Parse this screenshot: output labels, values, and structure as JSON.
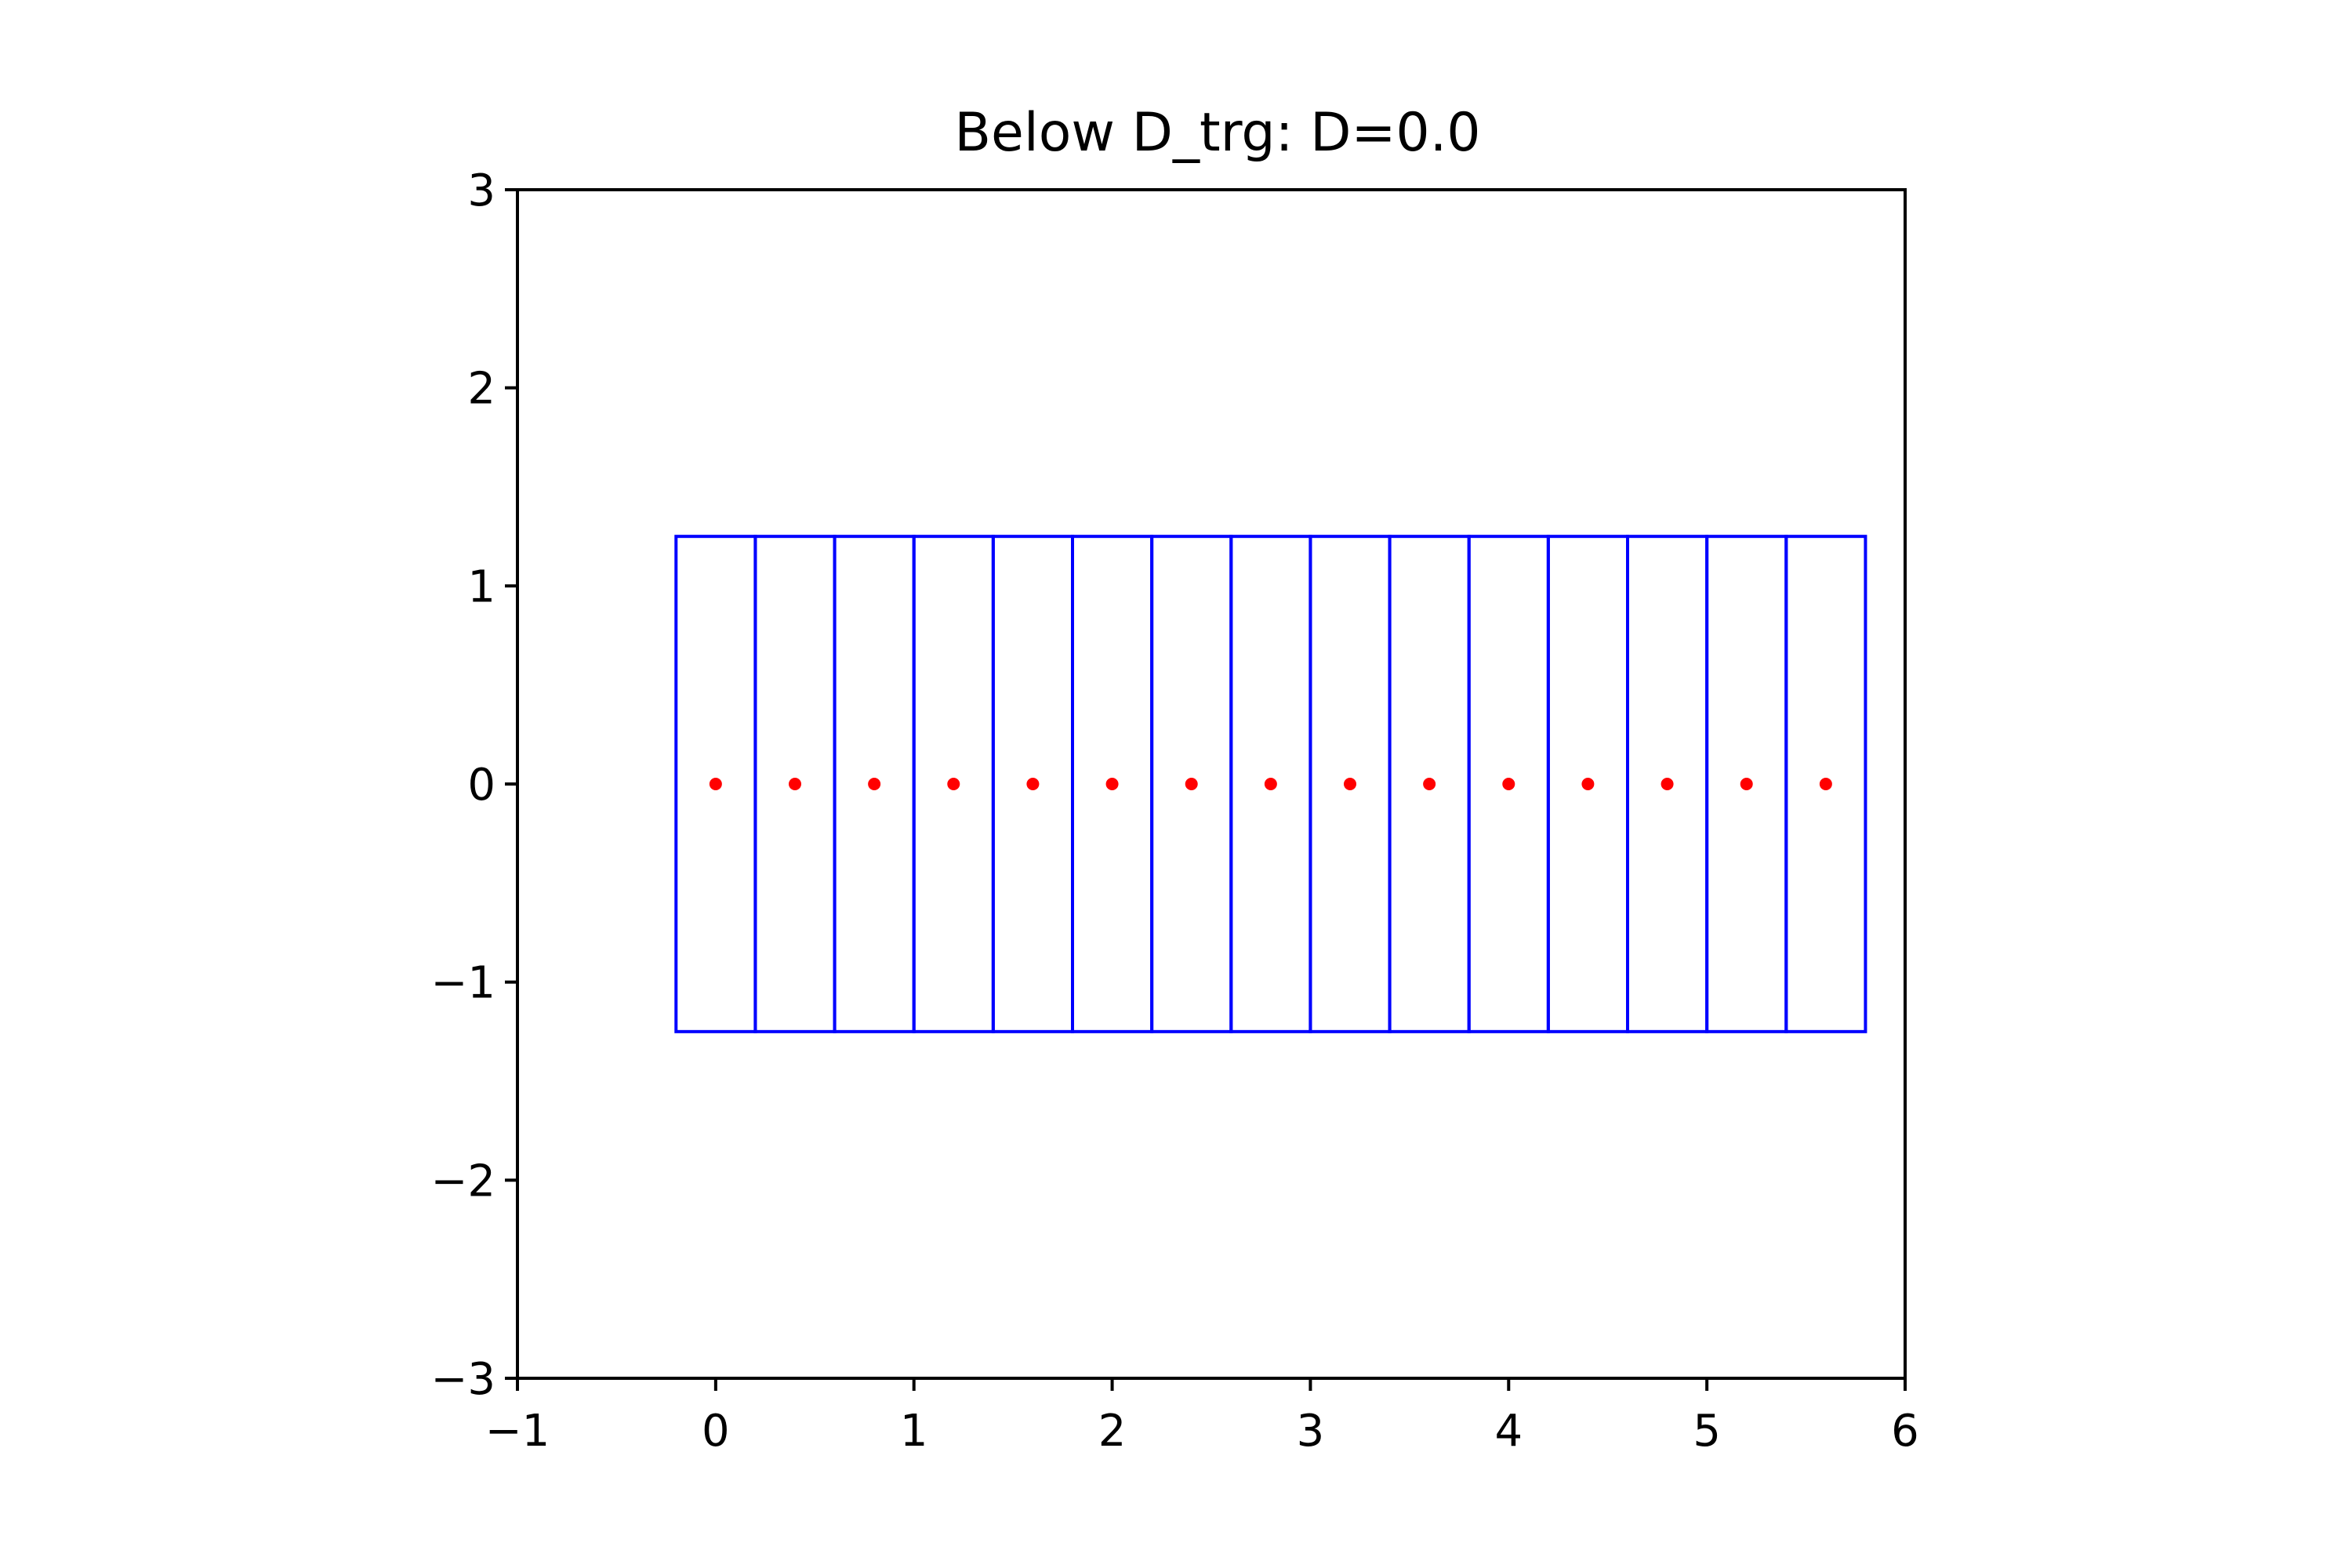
{
  "chart_data": {
    "type": "scatter",
    "title": "Below D_trg: D=0.0",
    "xlabel": "",
    "ylabel": "",
    "xlim": [
      -1,
      6
    ],
    "ylim": [
      -3,
      3
    ],
    "x_ticks": [
      -1,
      0,
      1,
      2,
      3,
      4,
      5,
      6
    ],
    "x_tick_labels": [
      "−1",
      "0",
      "1",
      "2",
      "3",
      "4",
      "5",
      "6"
    ],
    "y_ticks": [
      -3,
      -2,
      -1,
      0,
      1,
      2,
      3
    ],
    "y_tick_labels": [
      "−3",
      "−2",
      "−1",
      "0",
      "1",
      "2",
      "3"
    ],
    "grid": false,
    "legend": "none",
    "cells": {
      "color": "#0000ff",
      "fill": "none",
      "x_edges": [
        -0.2,
        0.2,
        0.6,
        1.0,
        1.4,
        1.8,
        2.2,
        2.6,
        3.0,
        3.4,
        3.8,
        4.2,
        4.6,
        5.0,
        5.4,
        5.8
      ],
      "y_range": [
        -1.25,
        1.25
      ]
    },
    "points": {
      "color": "#ff0000",
      "x": [
        0.0,
        0.4,
        0.8,
        1.2,
        1.6,
        2.0,
        2.4,
        2.8,
        3.2,
        3.6,
        4.0,
        4.4,
        4.8,
        5.2,
        5.6
      ],
      "y": [
        0,
        0,
        0,
        0,
        0,
        0,
        0,
        0,
        0,
        0,
        0,
        0,
        0,
        0,
        0
      ]
    }
  }
}
